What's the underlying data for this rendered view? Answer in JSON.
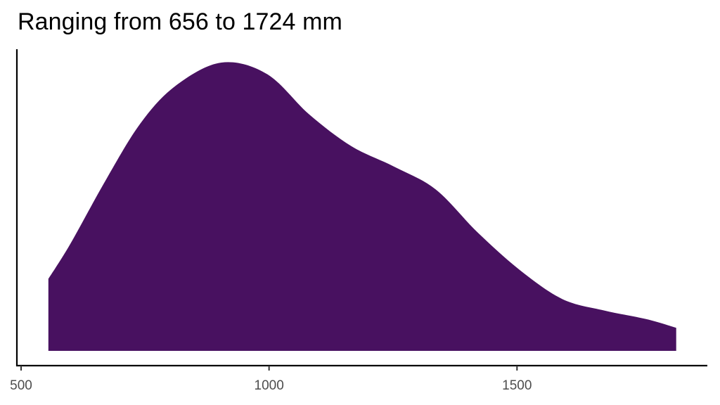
{
  "chart_data": {
    "type": "area",
    "subtype": "density",
    "title": "Ranging from 656 to 1724 mm",
    "xlabel": "",
    "ylabel": "",
    "xlim": [
      488,
      1893
    ],
    "x_ticks": [
      500,
      1000,
      1500
    ],
    "x_tick_labels": [
      "500",
      "1000",
      "1500"
    ],
    "y_ticks": [],
    "grid": false,
    "legend": null,
    "fill_color": "#481160",
    "x": [
      555,
      599,
      670,
      741,
      812,
      904,
      996,
      1081,
      1166,
      1251,
      1336,
      1421,
      1506,
      1591,
      1676,
      1761,
      1821
    ],
    "y": [
      0.25,
      0.37,
      0.59,
      0.79,
      0.92,
      1.0,
      0.96,
      0.82,
      0.71,
      0.64,
      0.56,
      0.41,
      0.28,
      0.18,
      0.14,
      0.11,
      0.08
    ],
    "ylim": [
      0,
      1.05
    ]
  },
  "colors": {
    "fill": "#481160",
    "axis": "#000000",
    "tick_text": "#4d4d4d"
  }
}
